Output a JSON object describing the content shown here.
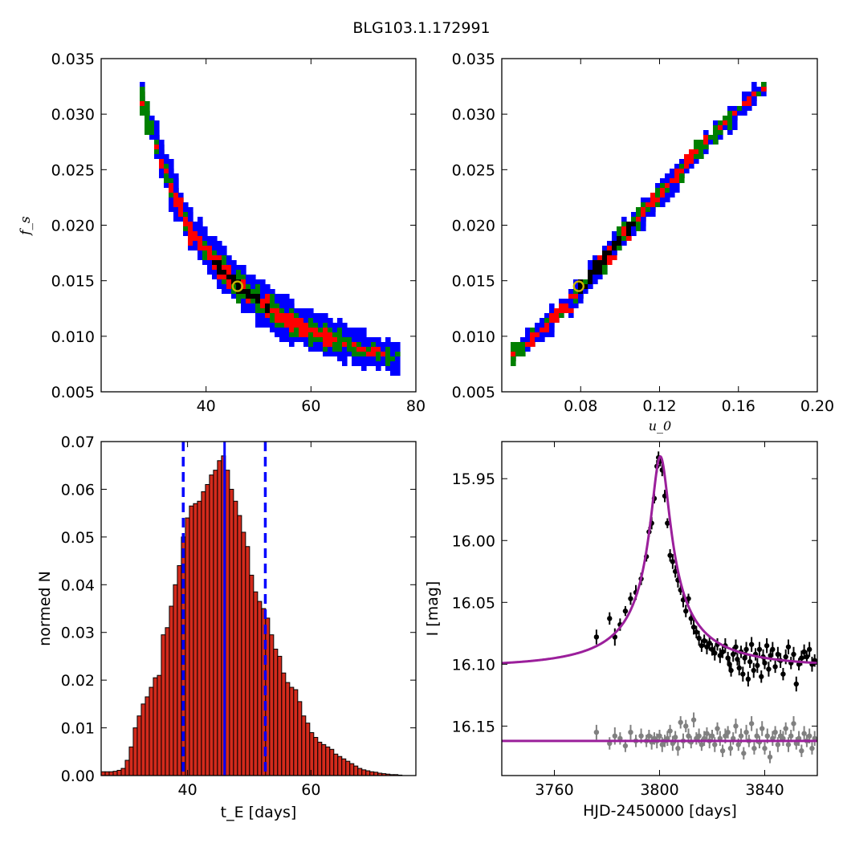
{
  "figure": {
    "title": "BLG103.1.172991"
  },
  "chart_data": [
    {
      "panel": "top-left",
      "type": "heatmap",
      "title": "",
      "xlabel": "",
      "ylabel": "f_s",
      "xlim": [
        20,
        80
      ],
      "ylim": [
        0.005,
        0.035
      ],
      "xticks": [
        "40",
        "60",
        "80"
      ],
      "xtick_values": [
        40,
        60,
        80
      ],
      "yticks": [
        "0.005",
        "0.010",
        "0.015",
        "0.020",
        "0.025",
        "0.030",
        "0.035"
      ],
      "ytick_values": [
        0.005,
        0.01,
        0.015,
        0.02,
        0.025,
        0.03,
        0.035
      ],
      "confidence_colors": {
        "outer": "#0000ff",
        "middle": "#008000",
        "inner": "#ff0000",
        "core": "#000000"
      },
      "ridge": [
        [
          27,
          0.0315
        ],
        [
          30,
          0.0275
        ],
        [
          33,
          0.0235
        ],
        [
          36,
          0.02
        ],
        [
          40,
          0.0175
        ],
        [
          45,
          0.015
        ],
        [
          50,
          0.013
        ],
        [
          55,
          0.0115
        ],
        [
          60,
          0.0105
        ],
        [
          65,
          0.0095
        ],
        [
          70,
          0.0088
        ],
        [
          76,
          0.0082
        ]
      ],
      "best_fit": {
        "x": 46.0,
        "y": 0.0145
      }
    },
    {
      "panel": "top-right",
      "type": "heatmap",
      "title": "",
      "xlabel": "u_0",
      "ylabel": "",
      "xlim": [
        0.04,
        0.2
      ],
      "ylim": [
        0.005,
        0.035
      ],
      "xticks": [
        "0.08",
        "0.12",
        "0.16",
        "0.20"
      ],
      "xtick_values": [
        0.08,
        0.12,
        0.16,
        0.2
      ],
      "yticks": [
        "0.005",
        "0.010",
        "0.015",
        "0.020",
        "0.025",
        "0.030",
        "0.035"
      ],
      "ytick_values": [
        0.005,
        0.01,
        0.015,
        0.02,
        0.025,
        0.03,
        0.035
      ],
      "ridge": [
        [
          0.044,
          0.0082
        ],
        [
          0.06,
          0.0107
        ],
        [
          0.08,
          0.0145
        ],
        [
          0.1,
          0.019
        ],
        [
          0.12,
          0.023
        ],
        [
          0.14,
          0.027
        ],
        [
          0.16,
          0.0305
        ],
        [
          0.172,
          0.0325
        ]
      ],
      "best_fit": {
        "x": 0.079,
        "y": 0.0145
      }
    },
    {
      "panel": "bottom-left",
      "type": "bar",
      "title": "",
      "xlabel": "t_E [days]",
      "ylabel": "normed N",
      "xlim": [
        26,
        77
      ],
      "ylim": [
        0,
        0.07
      ],
      "xticks": [
        "40",
        "60"
      ],
      "xtick_values": [
        40,
        60
      ],
      "yticks": [
        "0.00",
        "0.01",
        "0.02",
        "0.03",
        "0.04",
        "0.05",
        "0.06",
        "0.07"
      ],
      "ytick_values": [
        0.0,
        0.01,
        0.02,
        0.03,
        0.04,
        0.05,
        0.06,
        0.07
      ],
      "bin_start": 26.0,
      "bin_width": 0.65,
      "values": [
        0.0008,
        0.0008,
        0.0008,
        0.0009,
        0.0011,
        0.0015,
        0.0032,
        0.006,
        0.01,
        0.0125,
        0.015,
        0.0165,
        0.0185,
        0.0205,
        0.021,
        0.0295,
        0.031,
        0.0355,
        0.04,
        0.044,
        0.05,
        0.054,
        0.0565,
        0.057,
        0.0575,
        0.0595,
        0.061,
        0.063,
        0.064,
        0.066,
        0.067,
        0.064,
        0.06,
        0.0575,
        0.0545,
        0.051,
        0.048,
        0.042,
        0.0385,
        0.0365,
        0.035,
        0.033,
        0.0295,
        0.0265,
        0.025,
        0.0215,
        0.0195,
        0.0185,
        0.018,
        0.0155,
        0.0125,
        0.011,
        0.009,
        0.008,
        0.007,
        0.0065,
        0.006,
        0.0055,
        0.0045,
        0.004,
        0.0035,
        0.003,
        0.0025,
        0.002,
        0.0015,
        0.0012,
        0.001,
        0.0008,
        0.0007,
        0.0005,
        0.0004,
        0.0003,
        0.0002,
        0.0002,
        0.0001
      ],
      "bar_color": "#d32a1c",
      "median_line": 46.0,
      "bound_lines": [
        39.3,
        52.6
      ]
    },
    {
      "panel": "bottom-right",
      "type": "scatter",
      "title": "",
      "xlabel": "HJD-2450000 [days]",
      "ylabel": "I [mag]",
      "xlim": [
        3740,
        3860
      ],
      "ylim": [
        16.19,
        15.92
      ],
      "y_inverted": true,
      "xticks": [
        "3760",
        "3800",
        "3840"
      ],
      "xtick_values": [
        3760,
        3800,
        3840
      ],
      "yticks": [
        "15.95",
        "16.00",
        "16.05",
        "16.10",
        "16.15"
      ],
      "ytick_values": [
        15.95,
        16.0,
        16.05,
        16.1,
        16.15
      ],
      "model": {
        "t0": 3800.3,
        "u0": 0.079,
        "tE": 46.0,
        "fs": 0.0145,
        "baseline": 16.102,
        "color": "#9b1f9b"
      },
      "residual_baseline": 16.162,
      "data": [
        [
          3776,
          16.078,
          0.006
        ],
        [
          3781,
          16.063,
          0.005
        ],
        [
          3783,
          16.078,
          0.007
        ],
        [
          3785,
          16.068,
          0.005
        ],
        [
          3787,
          16.057,
          0.004
        ],
        [
          3789,
          16.047,
          0.005
        ],
        [
          3791,
          16.042,
          0.006
        ],
        [
          3793,
          16.031,
          0.005
        ],
        [
          3795,
          16.013,
          0.004
        ],
        [
          3796,
          15.993,
          0.004
        ],
        [
          3797,
          15.986,
          0.005
        ],
        [
          3798,
          15.966,
          0.004
        ],
        [
          3799,
          15.94,
          0.005
        ],
        [
          3799.6,
          15.933,
          0.005
        ],
        [
          3800.2,
          15.936,
          0.004
        ],
        [
          3801,
          15.943,
          0.005
        ],
        [
          3802,
          15.964,
          0.005
        ],
        [
          3803,
          15.986,
          0.004
        ],
        [
          3804,
          16.012,
          0.005
        ],
        [
          3805,
          16.017,
          0.006
        ],
        [
          3806,
          16.025,
          0.005
        ],
        [
          3807,
          16.032,
          0.006
        ],
        [
          3808,
          16.04,
          0.004
        ],
        [
          3809,
          16.048,
          0.006
        ],
        [
          3810,
          16.057,
          0.005
        ],
        [
          3811,
          16.047,
          0.004
        ],
        [
          3812,
          16.063,
          0.005
        ],
        [
          3813,
          16.07,
          0.006
        ],
        [
          3814,
          16.074,
          0.005
        ],
        [
          3815,
          16.079,
          0.006
        ],
        [
          3816,
          16.085,
          0.005
        ],
        [
          3817,
          16.081,
          0.005
        ],
        [
          3818,
          16.086,
          0.006
        ],
        [
          3819,
          16.083,
          0.006
        ],
        [
          3820,
          16.088,
          0.005
        ],
        [
          3821,
          16.091,
          0.006
        ],
        [
          3822,
          16.084,
          0.005
        ],
        [
          3823,
          16.093,
          0.006
        ],
        [
          3824,
          16.09,
          0.005
        ],
        [
          3825,
          16.085,
          0.006
        ],
        [
          3826,
          16.095,
          0.005
        ],
        [
          3826.6,
          16.1,
          0.006
        ],
        [
          3827.2,
          16.105,
          0.005
        ],
        [
          3828,
          16.092,
          0.006
        ],
        [
          3829,
          16.086,
          0.006
        ],
        [
          3829.6,
          16.096,
          0.005
        ],
        [
          3830.3,
          16.103,
          0.006
        ],
        [
          3831,
          16.09,
          0.005
        ],
        [
          3831.7,
          16.108,
          0.006
        ],
        [
          3832.4,
          16.095,
          0.005
        ],
        [
          3833,
          16.088,
          0.006
        ],
        [
          3833.7,
          16.112,
          0.006
        ],
        [
          3834.4,
          16.098,
          0.005
        ],
        [
          3835,
          16.084,
          0.006
        ],
        [
          3835.8,
          16.105,
          0.006
        ],
        [
          3836.5,
          16.092,
          0.005
        ],
        [
          3837.2,
          16.101,
          0.006
        ],
        [
          3838,
          16.088,
          0.006
        ],
        [
          3838.7,
          16.11,
          0.005
        ],
        [
          3839.4,
          16.094,
          0.006
        ],
        [
          3840,
          16.099,
          0.005
        ],
        [
          3840.8,
          16.085,
          0.006
        ],
        [
          3841.5,
          16.104,
          0.006
        ],
        [
          3842.2,
          16.093,
          0.005
        ],
        [
          3843,
          16.088,
          0.006
        ],
        [
          3844,
          16.102,
          0.005
        ],
        [
          3845,
          16.092,
          0.006
        ],
        [
          3846,
          16.097,
          0.006
        ],
        [
          3847,
          16.108,
          0.005
        ],
        [
          3848,
          16.094,
          0.006
        ],
        [
          3849,
          16.086,
          0.006
        ],
        [
          3850,
          16.099,
          0.005
        ],
        [
          3851,
          16.092,
          0.006
        ],
        [
          3852,
          16.116,
          0.006
        ],
        [
          3853,
          16.1,
          0.005
        ],
        [
          3854,
          16.095,
          0.006
        ],
        [
          3855,
          16.09,
          0.006
        ],
        [
          3856,
          16.094,
          0.005
        ],
        [
          3857,
          16.088,
          0.006
        ],
        [
          3858,
          16.1,
          0.006
        ],
        [
          3859,
          16.097,
          0.005
        ]
      ],
      "residuals": [
        [
          3776,
          16.155,
          0.006
        ],
        [
          3781,
          16.164,
          0.005
        ],
        [
          3783,
          16.158,
          0.007
        ],
        [
          3785,
          16.16,
          0.005
        ],
        [
          3787,
          16.166,
          0.005
        ],
        [
          3789,
          16.155,
          0.006
        ],
        [
          3791,
          16.162,
          0.005
        ],
        [
          3793,
          16.158,
          0.006
        ],
        [
          3795,
          16.162,
          0.005
        ],
        [
          3796,
          16.158,
          0.005
        ],
        [
          3797,
          16.163,
          0.006
        ],
        [
          3798,
          16.16,
          0.005
        ],
        [
          3799,
          16.162,
          0.006
        ],
        [
          3800,
          16.158,
          0.005
        ],
        [
          3801,
          16.165,
          0.006
        ],
        [
          3802,
          16.162,
          0.005
        ],
        [
          3803,
          16.16,
          0.006
        ],
        [
          3804,
          16.154,
          0.005
        ],
        [
          3805,
          16.164,
          0.006
        ],
        [
          3806,
          16.159,
          0.005
        ],
        [
          3807,
          16.168,
          0.006
        ],
        [
          3808,
          16.147,
          0.005
        ],
        [
          3809,
          16.162,
          0.006
        ],
        [
          3810,
          16.15,
          0.005
        ],
        [
          3811,
          16.158,
          0.006
        ],
        [
          3812,
          16.163,
          0.005
        ],
        [
          3813,
          16.145,
          0.006
        ],
        [
          3814,
          16.16,
          0.005
        ],
        [
          3815,
          16.158,
          0.006
        ],
        [
          3816,
          16.165,
          0.005
        ],
        [
          3817,
          16.16,
          0.006
        ],
        [
          3818,
          16.156,
          0.005
        ],
        [
          3819,
          16.162,
          0.006
        ],
        [
          3820,
          16.158,
          0.005
        ],
        [
          3821,
          16.165,
          0.006
        ],
        [
          3822,
          16.152,
          0.005
        ],
        [
          3823,
          16.16,
          0.006
        ],
        [
          3824,
          16.17,
          0.005
        ],
        [
          3825,
          16.158,
          0.006
        ],
        [
          3826,
          16.155,
          0.005
        ],
        [
          3827,
          16.168,
          0.006
        ],
        [
          3828,
          16.16,
          0.005
        ],
        [
          3829,
          16.15,
          0.006
        ],
        [
          3830,
          16.165,
          0.005
        ],
        [
          3831,
          16.158,
          0.006
        ],
        [
          3832,
          16.172,
          0.005
        ],
        [
          3833,
          16.155,
          0.006
        ],
        [
          3834,
          16.162,
          0.005
        ],
        [
          3835,
          16.148,
          0.006
        ],
        [
          3836,
          16.168,
          0.005
        ],
        [
          3837,
          16.158,
          0.006
        ],
        [
          3838,
          16.163,
          0.005
        ],
        [
          3839,
          16.152,
          0.006
        ],
        [
          3840,
          16.168,
          0.005
        ],
        [
          3841,
          16.158,
          0.006
        ],
        [
          3842,
          16.175,
          0.005
        ],
        [
          3843,
          16.16,
          0.006
        ],
        [
          3844,
          16.155,
          0.005
        ],
        [
          3845,
          16.165,
          0.006
        ],
        [
          3846,
          16.158,
          0.005
        ],
        [
          3847,
          16.16,
          0.006
        ],
        [
          3848,
          16.152,
          0.005
        ],
        [
          3849,
          16.165,
          0.006
        ],
        [
          3850,
          16.158,
          0.005
        ],
        [
          3851,
          16.148,
          0.006
        ],
        [
          3852,
          16.164,
          0.005
        ],
        [
          3853,
          16.16,
          0.006
        ],
        [
          3854,
          16.17,
          0.005
        ],
        [
          3855,
          16.156,
          0.006
        ],
        [
          3856,
          16.162,
          0.005
        ],
        [
          3857,
          16.158,
          0.006
        ],
        [
          3858,
          16.168,
          0.005
        ],
        [
          3859,
          16.16,
          0.006
        ]
      ],
      "data_color": "#000000",
      "residual_color": "#808080"
    }
  ]
}
